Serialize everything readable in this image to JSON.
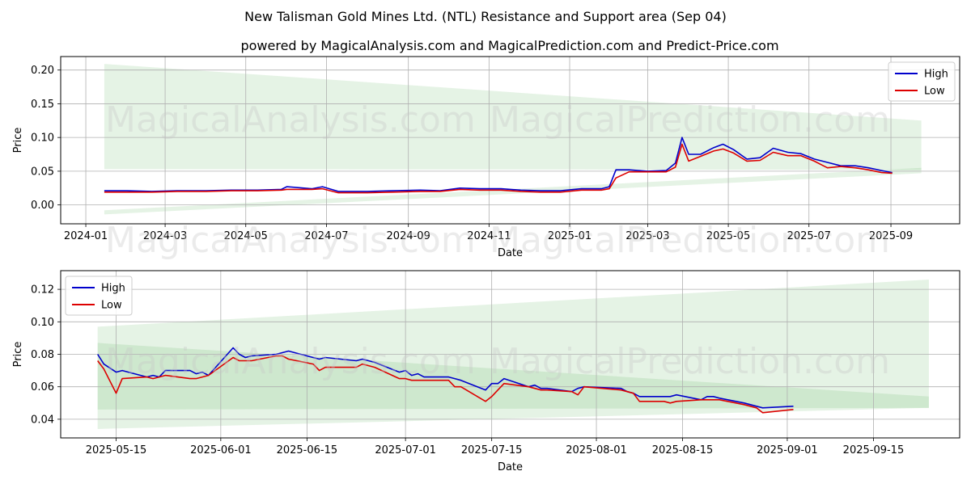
{
  "title": "New Talisman Gold Mines Ltd. (NTL) Resistance and Support area (Sep 04)",
  "subtitle": "powered by MagicalAnalysis.com and MagicalPrediction.com and Predict-Price.com",
  "watermarks": [
    "MagicalAnalysis.com",
    "MagicalPrediction.com"
  ],
  "colors": {
    "high": "#0000cc",
    "low": "#dd0000",
    "band": "#2ca02c"
  },
  "chart_data": [
    {
      "type": "line",
      "xlabel": "Date",
      "ylabel": "Price",
      "x_ticks": [
        "2024-01",
        "2024-03",
        "2024-05",
        "2024-07",
        "2024-09",
        "2024-11",
        "2025-01",
        "2025-03",
        "2025-05",
        "2025-07",
        "2025-09"
      ],
      "y_ticks": [
        "0.00",
        "0.05",
        "0.10",
        "0.15",
        "0.20"
      ],
      "xlim": [
        "2023-12-13",
        "2025-10-23"
      ],
      "ylim": [
        -0.028,
        0.22
      ],
      "grid": true,
      "legend": "top-right",
      "bands": [
        {
          "x": [
            "2024-01-15",
            "2025-09-24"
          ],
          "upper": [
            0.209,
            0.125
          ],
          "lower": [
            0.053,
            0.052
          ]
        },
        {
          "x": [
            "2024-01-15",
            "2025-09-24"
          ],
          "upper": [
            -0.008,
            0.055
          ],
          "lower": [
            -0.014,
            0.047
          ]
        }
      ],
      "series": [
        {
          "name": "High",
          "x": [
            "2024-01-15",
            "2024-02-01",
            "2024-02-20",
            "2024-03-10",
            "2024-04-01",
            "2024-04-20",
            "2024-05-10",
            "2024-05-28",
            "2024-06-01",
            "2024-06-20",
            "2024-06-28",
            "2024-07-10",
            "2024-08-01",
            "2024-08-20",
            "2024-09-10",
            "2024-09-25",
            "2024-10-10",
            "2024-10-25",
            "2024-11-10",
            "2024-11-25",
            "2024-12-10",
            "2024-12-25",
            "2025-01-10",
            "2025-01-25",
            "2025-01-31",
            "2025-02-05",
            "2025-02-15",
            "2025-03-01",
            "2025-03-15",
            "2025-03-22",
            "2025-03-27",
            "2025-04-01",
            "2025-04-10",
            "2025-04-20",
            "2025-04-27",
            "2025-05-05",
            "2025-05-15",
            "2025-05-25",
            "2025-06-04",
            "2025-06-15",
            "2025-06-25",
            "2025-07-05",
            "2025-07-15",
            "2025-07-25",
            "2025-08-05",
            "2025-08-15",
            "2025-08-25",
            "2025-09-02"
          ],
          "values": [
            0.021,
            0.021,
            0.02,
            0.021,
            0.021,
            0.022,
            0.022,
            0.023,
            0.027,
            0.024,
            0.027,
            0.02,
            0.02,
            0.021,
            0.022,
            0.021,
            0.025,
            0.024,
            0.024,
            0.022,
            0.021,
            0.021,
            0.024,
            0.024,
            0.027,
            0.052,
            0.052,
            0.05,
            0.051,
            0.062,
            0.1,
            0.075,
            0.075,
            0.085,
            0.09,
            0.082,
            0.068,
            0.07,
            0.084,
            0.078,
            0.076,
            0.068,
            0.063,
            0.058,
            0.058,
            0.055,
            0.051,
            0.048
          ]
        },
        {
          "name": "Low",
          "x": [
            "2024-01-15",
            "2024-02-01",
            "2024-02-20",
            "2024-03-10",
            "2024-04-01",
            "2024-04-20",
            "2024-05-10",
            "2024-05-28",
            "2024-06-01",
            "2024-06-20",
            "2024-06-28",
            "2024-07-10",
            "2024-08-01",
            "2024-08-20",
            "2024-09-10",
            "2024-09-25",
            "2024-10-10",
            "2024-10-25",
            "2024-11-10",
            "2024-11-25",
            "2024-12-10",
            "2024-12-25",
            "2025-01-10",
            "2025-01-25",
            "2025-01-31",
            "2025-02-05",
            "2025-02-15",
            "2025-03-01",
            "2025-03-15",
            "2025-03-22",
            "2025-03-27",
            "2025-04-01",
            "2025-04-10",
            "2025-04-20",
            "2025-04-27",
            "2025-05-05",
            "2025-05-15",
            "2025-05-25",
            "2025-06-04",
            "2025-06-15",
            "2025-06-25",
            "2025-07-05",
            "2025-07-15",
            "2025-07-25",
            "2025-08-05",
            "2025-08-15",
            "2025-08-25",
            "2025-09-02"
          ],
          "values": [
            0.019,
            0.019,
            0.019,
            0.02,
            0.02,
            0.021,
            0.021,
            0.022,
            0.023,
            0.023,
            0.024,
            0.018,
            0.018,
            0.019,
            0.02,
            0.02,
            0.023,
            0.022,
            0.022,
            0.02,
            0.019,
            0.019,
            0.022,
            0.022,
            0.024,
            0.04,
            0.049,
            0.049,
            0.049,
            0.056,
            0.09,
            0.065,
            0.072,
            0.08,
            0.083,
            0.077,
            0.065,
            0.066,
            0.078,
            0.073,
            0.073,
            0.065,
            0.055,
            0.057,
            0.055,
            0.052,
            0.048,
            0.047
          ]
        }
      ]
    },
    {
      "type": "line",
      "xlabel": "Date",
      "ylabel": "Price",
      "x_ticks": [
        "2025-05-15",
        "2025-06-01",
        "2025-06-15",
        "2025-07-01",
        "2025-07-15",
        "2025-08-01",
        "2025-08-15",
        "2025-09-01",
        "2025-09-15"
      ],
      "y_ticks": [
        "0.04",
        "0.06",
        "0.08",
        "0.10",
        "0.12"
      ],
      "xlim": [
        "2025-05-06",
        "2025-09-29"
      ],
      "ylim": [
        0.0285,
        0.1315
      ],
      "grid": true,
      "legend": "top-left",
      "bands": [
        {
          "x": [
            "2025-05-12",
            "2025-09-24"
          ],
          "upper": [
            0.097,
            0.126
          ],
          "lower": [
            0.046,
            0.047
          ]
        },
        {
          "x": [
            "2025-05-12",
            "2025-09-24"
          ],
          "upper": [
            0.087,
            0.054
          ],
          "lower": [
            0.034,
            0.047
          ]
        }
      ],
      "series": [
        {
          "name": "High",
          "x": [
            "2025-05-12",
            "2025-05-13",
            "2025-05-15",
            "2025-05-16",
            "2025-05-20",
            "2025-05-21",
            "2025-05-22",
            "2025-05-23",
            "2025-05-27",
            "2025-05-28",
            "2025-05-29",
            "2025-05-30",
            "2025-06-03",
            "2025-06-04",
            "2025-06-05",
            "2025-06-06",
            "2025-06-10",
            "2025-06-11",
            "2025-06-12",
            "2025-06-16",
            "2025-06-17",
            "2025-06-18",
            "2025-06-23",
            "2025-06-24",
            "2025-06-26",
            "2025-06-30",
            "2025-07-01",
            "2025-07-02",
            "2025-07-03",
            "2025-07-04",
            "2025-07-08",
            "2025-07-09",
            "2025-07-10",
            "2025-07-14",
            "2025-07-15",
            "2025-07-16",
            "2025-07-17",
            "2025-07-21",
            "2025-07-22",
            "2025-07-23",
            "2025-07-24",
            "2025-07-28",
            "2025-07-29",
            "2025-07-30",
            "2025-08-05",
            "2025-08-06",
            "2025-08-07",
            "2025-08-08",
            "2025-08-12",
            "2025-08-13",
            "2025-08-14",
            "2025-08-18",
            "2025-08-19",
            "2025-08-20",
            "2025-08-21",
            "2025-08-25",
            "2025-08-27",
            "2025-08-28",
            "2025-09-02"
          ],
          "values": [
            0.08,
            0.074,
            0.069,
            0.07,
            0.066,
            0.067,
            0.066,
            0.07,
            0.07,
            0.068,
            0.069,
            0.067,
            0.084,
            0.08,
            0.078,
            0.079,
            0.08,
            0.081,
            0.082,
            0.078,
            0.077,
            0.078,
            0.076,
            0.077,
            0.075,
            0.069,
            0.07,
            0.067,
            0.068,
            0.066,
            0.066,
            0.065,
            0.064,
            0.058,
            0.062,
            0.062,
            0.065,
            0.06,
            0.061,
            0.059,
            0.059,
            0.057,
            0.059,
            0.06,
            0.059,
            0.057,
            0.056,
            0.054,
            0.054,
            0.054,
            0.055,
            0.052,
            0.054,
            0.054,
            0.053,
            0.05,
            0.048,
            0.047,
            0.048
          ]
        },
        {
          "name": "Low",
          "x": [
            "2025-05-12",
            "2025-05-13",
            "2025-05-15",
            "2025-05-16",
            "2025-05-20",
            "2025-05-21",
            "2025-05-22",
            "2025-05-23",
            "2025-05-27",
            "2025-05-28",
            "2025-05-29",
            "2025-05-30",
            "2025-06-03",
            "2025-06-04",
            "2025-06-05",
            "2025-06-06",
            "2025-06-10",
            "2025-06-11",
            "2025-06-12",
            "2025-06-16",
            "2025-06-17",
            "2025-06-18",
            "2025-06-23",
            "2025-06-24",
            "2025-06-26",
            "2025-06-30",
            "2025-07-01",
            "2025-07-02",
            "2025-07-03",
            "2025-07-04",
            "2025-07-08",
            "2025-07-09",
            "2025-07-10",
            "2025-07-14",
            "2025-07-15",
            "2025-07-16",
            "2025-07-17",
            "2025-07-21",
            "2025-07-22",
            "2025-07-23",
            "2025-07-24",
            "2025-07-28",
            "2025-07-29",
            "2025-07-30",
            "2025-08-05",
            "2025-08-06",
            "2025-08-07",
            "2025-08-08",
            "2025-08-12",
            "2025-08-13",
            "2025-08-14",
            "2025-08-18",
            "2025-08-19",
            "2025-08-20",
            "2025-08-21",
            "2025-08-25",
            "2025-08-27",
            "2025-08-28",
            "2025-09-02"
          ],
          "values": [
            0.076,
            0.071,
            0.056,
            0.065,
            0.066,
            0.065,
            0.066,
            0.067,
            0.065,
            0.065,
            0.066,
            0.067,
            0.078,
            0.076,
            0.076,
            0.076,
            0.079,
            0.079,
            0.077,
            0.074,
            0.07,
            0.072,
            0.072,
            0.074,
            0.072,
            0.065,
            0.065,
            0.064,
            0.064,
            0.064,
            0.064,
            0.06,
            0.06,
            0.051,
            0.054,
            0.058,
            0.062,
            0.06,
            0.059,
            0.058,
            0.058,
            0.057,
            0.055,
            0.06,
            0.058,
            0.057,
            0.056,
            0.051,
            0.051,
            0.05,
            0.051,
            0.052,
            0.052,
            0.052,
            0.052,
            0.049,
            0.047,
            0.044,
            0.046
          ]
        }
      ]
    }
  ]
}
